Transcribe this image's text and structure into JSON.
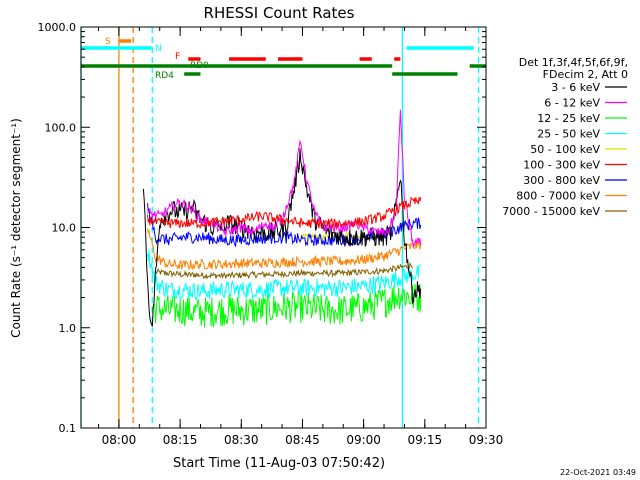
{
  "chart_data": {
    "type": "line",
    "title": "RHESSI Count Rates",
    "xlabel": "Start Time (11-Aug-03 07:50:42)",
    "ylabel": "Count Rate (s⁻¹ detector segment⁻¹)",
    "ylog": true,
    "ylim": [
      0.1,
      1000
    ],
    "xlim": [
      "07:50:42",
      "09:30:00"
    ],
    "x_ticks": [
      "08:00",
      "08:15",
      "08:30",
      "08:45",
      "09:00",
      "09:15",
      "09:30"
    ],
    "y_ticks": [
      "0.1",
      "1.0",
      "10.0",
      "100.0",
      "1000.0"
    ],
    "timestamp": "22-Oct-2021 03:49",
    "legend": {
      "placement": "right",
      "header": [
        "Det 1f,3f,4f,5f,6f,9f,",
        "FDecim 2, Att 0"
      ],
      "entries": [
        {
          "label": "3 - 6 keV",
          "color": "#000000"
        },
        {
          "label": "6 - 12 keV",
          "color": "#ff00ff"
        },
        {
          "label": "12 - 25 keV",
          "color": "#00ff00"
        },
        {
          "label": "25 - 50 keV",
          "color": "#00ffff"
        },
        {
          "label": "50 - 100 keV",
          "color": "#e0e000"
        },
        {
          "label": "100 - 300 keV",
          "color": "#ff0000"
        },
        {
          "label": "300 - 800 keV",
          "color": "#0000ff"
        },
        {
          "label": "800 - 7000 keV",
          "color": "#ff8000"
        },
        {
          "label": "7000 - 15000 keV",
          "color": "#806000"
        }
      ]
    },
    "flags": [
      {
        "label": "S",
        "color": "#ff8000",
        "segments": [
          [
            "08:00:00",
            "08:03:00"
          ]
        ]
      },
      {
        "label": "N",
        "color": "#00ffff",
        "segments": [
          [
            "07:50:42",
            "08:08:00"
          ],
          [
            "09:10:30",
            "09:27:00"
          ]
        ]
      },
      {
        "label": "F",
        "color": "#ff0000",
        "segments": [
          [
            "08:17:00",
            "08:20:00"
          ],
          [
            "08:27:00",
            "08:36:00"
          ],
          [
            "08:39:00",
            "08:45:00"
          ],
          [
            "08:59:00",
            "09:02:00"
          ],
          [
            "09:07:30",
            "09:09:00"
          ]
        ]
      },
      {
        "label": "RD0",
        "color": "#008000",
        "segments": [
          [
            "07:50:42",
            "09:07:00"
          ],
          [
            "09:26:00",
            "09:30:00"
          ]
        ]
      },
      {
        "label": "RD4",
        "color": "#008000",
        "segments": [
          [
            "08:16:00",
            "08:20:00"
          ],
          [
            "09:07:00",
            "09:23:00"
          ]
        ]
      }
    ],
    "vertical_lines": [
      {
        "time": "07:50:42",
        "color": "#00ffff",
        "style": "solid"
      },
      {
        "time": "08:00:00",
        "color": "#ff8000",
        "style": "solid"
      },
      {
        "time": "08:03:30",
        "color": "#ff8000",
        "style": "dashed"
      },
      {
        "time": "08:08:10",
        "color": "#00ffff",
        "style": "dashed"
      },
      {
        "time": "09:09:30",
        "color": "#00ffff",
        "style": "solid"
      },
      {
        "time": "09:28:10",
        "color": "#00ffff",
        "style": "dashed"
      }
    ],
    "series": [
      {
        "name": "3 - 6 keV",
        "color": "#000000",
        "x": [
          "08:06:00",
          "08:07:00",
          "08:08:00",
          "08:10:00",
          "08:13:00",
          "08:15:00",
          "08:18:00",
          "08:20:00",
          "08:23:00",
          "08:27:00",
          "08:30:00",
          "08:34:00",
          "08:38:00",
          "08:41:00",
          "08:43:00",
          "08:44:30",
          "08:46:00",
          "08:48:00",
          "08:51:00",
          "08:56:00",
          "09:00:00",
          "09:05:00",
          "09:07:00",
          "09:09:00",
          "09:10:00",
          "09:12:00",
          "09:14:00"
        ],
        "y": [
          30,
          3,
          0.9,
          12,
          15,
          14,
          16,
          12,
          10,
          11,
          10,
          9,
          9,
          10,
          25,
          55,
          25,
          12,
          9,
          8,
          8,
          8,
          9,
          35,
          8,
          2.2,
          2.5
        ]
      },
      {
        "name": "6 - 12 keV",
        "color": "#ff00ff",
        "x": [
          "08:07:00",
          "08:10:00",
          "08:13:00",
          "08:15:00",
          "08:18:00",
          "08:20:00",
          "08:23:00",
          "08:26:00",
          "08:30:00",
          "08:33:00",
          "08:36:00",
          "08:38:00",
          "08:40:00",
          "08:43:00",
          "08:44:30",
          "08:46:00",
          "08:48:00",
          "08:50:00",
          "08:52:00",
          "08:55:00",
          "08:58:00",
          "09:00:00",
          "09:03:00",
          "09:06:00",
          "09:08:00",
          "09:09:00",
          "09:10:00",
          "09:12:00",
          "09:14:00"
        ],
        "y": [
          14,
          13,
          16,
          18,
          15,
          12,
          11,
          9,
          10,
          9,
          11,
          10,
          12,
          28,
          75,
          30,
          14,
          10,
          10,
          10,
          11,
          10,
          9,
          9,
          15,
          150,
          20,
          7,
          7
        ]
      },
      {
        "name": "12 - 25 keV",
        "color": "#00ff00",
        "x": [
          "08:08:00",
          "08:12:00",
          "08:16:00",
          "08:20:00",
          "08:25:00",
          "08:30:00",
          "08:35:00",
          "08:40:00",
          "08:45:00",
          "08:50:00",
          "08:55:00",
          "09:00:00",
          "09:05:00",
          "09:09:00",
          "09:12:00",
          "09:14:00"
        ],
        "y": [
          1.6,
          1.5,
          1.5,
          1.4,
          1.5,
          1.5,
          1.5,
          1.6,
          1.6,
          1.5,
          1.5,
          1.6,
          1.8,
          2.2,
          2.0,
          2.0
        ]
      },
      {
        "name": "25 - 50 keV",
        "color": "#00ffff",
        "x": [
          "08:07:00",
          "08:09:00",
          "08:12:00",
          "08:16:00",
          "08:20:00",
          "08:25:00",
          "08:30:00",
          "08:35:00",
          "08:40:00",
          "08:45:00",
          "08:50:00",
          "08:55:00",
          "09:00:00",
          "09:05:00",
          "09:09:00",
          "09:12:00",
          "09:14:00"
        ],
        "y": [
          6,
          2.8,
          2.4,
          2.4,
          2.3,
          2.4,
          2.4,
          2.4,
          2.5,
          2.5,
          2.5,
          2.5,
          2.6,
          2.8,
          3.2,
          3.4,
          3.5
        ]
      },
      {
        "name": "50 - 100 keV",
        "color": "#e0e000",
        "x": [
          "08:45:00",
          "08:48:00",
          "08:52:00",
          "08:56:00",
          "09:00:00",
          "09:04:00"
        ],
        "y": [
          8,
          8.2,
          7.8,
          8.5,
          8,
          8.3
        ]
      },
      {
        "name": "100 - 300 keV",
        "color": "#ff0000",
        "x": [
          "08:07:00",
          "08:10:00",
          "08:15:00",
          "08:20:00",
          "08:25:00",
          "08:30:00",
          "08:35:00",
          "08:40:00",
          "08:45:00",
          "08:50:00",
          "08:55:00",
          "09:00:00",
          "09:05:00",
          "09:09:00",
          "09:12:00",
          "09:14:00"
        ],
        "y": [
          12,
          11,
          11,
          11,
          11.5,
          12,
          13,
          12,
          11,
          11,
          11,
          11.5,
          13,
          16,
          18,
          18
        ]
      },
      {
        "name": "300 - 800 keV",
        "color": "#0000ff",
        "x": [
          "08:07:00",
          "08:09:00",
          "08:12:00",
          "08:16:00",
          "08:20:00",
          "08:25:00",
          "08:30:00",
          "08:35:00",
          "08:40:00",
          "08:45:00",
          "08:50:00",
          "08:55:00",
          "09:00:00",
          "09:05:00",
          "09:09:00",
          "09:12:00",
          "09:14:00"
        ],
        "y": [
          16,
          8,
          7.5,
          8,
          8,
          7.5,
          7.5,
          7.8,
          8,
          7.5,
          7.5,
          7.5,
          7.8,
          8.5,
          10,
          11,
          11
        ]
      },
      {
        "name": "800 - 7000 keV",
        "color": "#ff8000",
        "x": [
          "08:07:00",
          "08:09:00",
          "08:12:00",
          "08:16:00",
          "08:20:00",
          "08:25:00",
          "08:30:00",
          "08:35:00",
          "08:40:00",
          "08:45:00",
          "08:50:00",
          "08:55:00",
          "09:00:00",
          "09:05:00",
          "09:09:00",
          "09:12:00",
          "09:14:00"
        ],
        "y": [
          10,
          5,
          4.3,
          4.2,
          4.3,
          4.3,
          4.4,
          4.4,
          4.5,
          4.6,
          4.6,
          4.6,
          4.8,
          5.2,
          6,
          6.5,
          6.8
        ]
      },
      {
        "name": "7000 - 15000 keV",
        "color": "#806000",
        "x": [
          "08:09:00",
          "08:15:00",
          "08:25:00",
          "08:35:00",
          "08:45:00",
          "08:55:00",
          "09:05:00",
          "09:12:00"
        ],
        "y": [
          3.6,
          3.4,
          3.3,
          3.4,
          3.5,
          3.5,
          3.7,
          4.2
        ]
      }
    ]
  }
}
